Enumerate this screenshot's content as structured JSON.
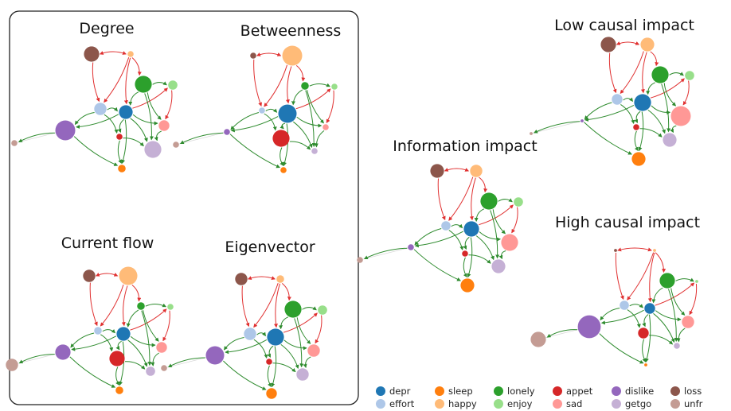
{
  "colors": {
    "depr": "#1f77b4",
    "effort": "#aec7e8",
    "sleep": "#ff7f0e",
    "happy": "#ffbb78",
    "lonely": "#2ca02c",
    "enjoy": "#98df8a",
    "appet": "#d62728",
    "sad": "#ff9896",
    "dislike": "#9467bd",
    "getgo": "#c5b0d5",
    "loss": "#8c564b",
    "unfr": "#c49c94",
    "edge_positive": "#2e8b2e",
    "edge_negative": "#e03030"
  },
  "panels": [
    {
      "id": "degree",
      "title": "Degree",
      "sizes": {
        "loss": 10,
        "happy": 4,
        "lonely": 11,
        "enjoy": 6,
        "effort": 8,
        "depr": 9,
        "sad": 7,
        "appet": 4,
        "dislike": 13,
        "getgo": 11,
        "sleep": 5,
        "unfr": 4
      }
    },
    {
      "id": "betweenness",
      "title": "Betweenness",
      "sizes": {
        "loss": 4,
        "happy": 13,
        "lonely": 5,
        "enjoy": 4,
        "effort": 4,
        "depr": 12,
        "sad": 4,
        "appet": 11,
        "dislike": 4,
        "getgo": 4,
        "sleep": 4,
        "unfr": 4
      }
    },
    {
      "id": "current-flow",
      "title": "Current flow",
      "sizes": {
        "loss": 8,
        "happy": 12,
        "lonely": 5,
        "enjoy": 4,
        "effort": 5,
        "depr": 9,
        "sad": 7,
        "appet": 10,
        "dislike": 10,
        "getgo": 6,
        "sleep": 5,
        "unfr": 8
      }
    },
    {
      "id": "eigenvector",
      "title": "Eigenvector",
      "sizes": {
        "loss": 8,
        "happy": 5,
        "lonely": 11,
        "enjoy": 6,
        "effort": 8,
        "depr": 11,
        "sad": 8,
        "appet": 4,
        "dislike": 12,
        "getgo": 8,
        "sleep": 7,
        "unfr": 4
      }
    },
    {
      "id": "information-impact",
      "title": "Information impact",
      "sizes": {
        "loss": 9,
        "happy": 8,
        "lonely": 11,
        "enjoy": 6,
        "effort": 6,
        "depr": 10,
        "sad": 11,
        "appet": 4,
        "dislike": 4,
        "getgo": 9,
        "sleep": 9,
        "unfr": 4
      }
    },
    {
      "id": "low-causal-impact",
      "title": "Low causal impact",
      "sizes": {
        "loss": 10,
        "happy": 9,
        "lonely": 11,
        "enjoy": 6,
        "effort": 7,
        "depr": 11,
        "sad": 13,
        "appet": 4,
        "dislike": 2,
        "getgo": 9,
        "sleep": 9,
        "unfr": 2
      }
    },
    {
      "id": "high-causal-impact",
      "title": "High causal impact",
      "sizes": {
        "loss": 2,
        "happy": 2,
        "lonely": 10,
        "enjoy": 2,
        "effort": 6,
        "depr": 7,
        "sad": 8,
        "appet": 7,
        "dislike": 15,
        "getgo": 4,
        "sleep": 2,
        "unfr": 10
      }
    }
  ],
  "legend": [
    {
      "key": "depr",
      "label": "depr"
    },
    {
      "key": "effort",
      "label": "effort"
    },
    {
      "key": "sleep",
      "label": "sleep"
    },
    {
      "key": "happy",
      "label": "happy"
    },
    {
      "key": "lonely",
      "label": "lonely"
    },
    {
      "key": "enjoy",
      "label": "enjoy"
    },
    {
      "key": "appet",
      "label": "appet"
    },
    {
      "key": "sad",
      "label": "sad"
    },
    {
      "key": "dislike",
      "label": "dislike"
    },
    {
      "key": "getgo",
      "label": "getgo"
    },
    {
      "key": "loss",
      "label": "loss"
    },
    {
      "key": "unfr",
      "label": "unfr"
    }
  ],
  "edges": [
    {
      "from": "loss",
      "to": "happy",
      "type": "negative"
    },
    {
      "from": "loss",
      "to": "effort",
      "type": "negative"
    },
    {
      "from": "happy",
      "to": "effort",
      "type": "negative"
    },
    {
      "from": "happy",
      "to": "depr",
      "type": "negative"
    },
    {
      "from": "happy",
      "to": "lonely",
      "type": "negative"
    },
    {
      "from": "depr",
      "to": "enjoy",
      "type": "negative"
    },
    {
      "from": "lonely",
      "to": "enjoy",
      "type": "positive"
    },
    {
      "from": "lonely",
      "to": "depr",
      "type": "positive"
    },
    {
      "from": "effort",
      "to": "depr",
      "type": "positive"
    },
    {
      "from": "effort",
      "to": "dislike",
      "type": "positive"
    },
    {
      "from": "depr",
      "to": "dislike",
      "type": "positive"
    },
    {
      "from": "depr",
      "to": "appet",
      "type": "positive"
    },
    {
      "from": "depr",
      "to": "getgo",
      "type": "positive"
    },
    {
      "from": "depr",
      "to": "sad",
      "type": "positive"
    },
    {
      "from": "depr",
      "to": "sleep",
      "type": "positive"
    },
    {
      "from": "lonely",
      "to": "sad",
      "type": "positive"
    },
    {
      "from": "lonely",
      "to": "getgo",
      "type": "positive"
    },
    {
      "from": "appet",
      "to": "sleep",
      "type": "positive"
    },
    {
      "from": "appet",
      "to": "getgo",
      "type": "positive"
    },
    {
      "from": "sad",
      "to": "getgo",
      "type": "positive"
    },
    {
      "from": "enjoy",
      "to": "sad",
      "type": "negative"
    },
    {
      "from": "dislike",
      "to": "unfr",
      "type": "positive"
    },
    {
      "from": "effort",
      "to": "appet",
      "type": "positive"
    },
    {
      "from": "dislike",
      "to": "sleep",
      "type": "positive"
    }
  ]
}
